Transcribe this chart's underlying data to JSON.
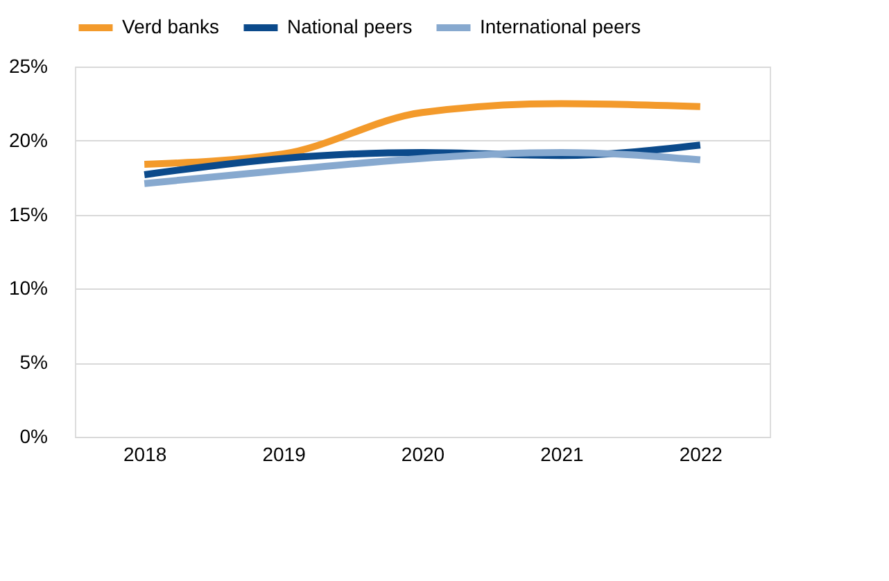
{
  "chart_data": {
    "type": "line",
    "categories": [
      "2018",
      "2019",
      "2020",
      "2021",
      "2022"
    ],
    "series": [
      {
        "name": "Verd banks",
        "color": "#f39a2b",
        "values": [
          18.4,
          19.1,
          21.9,
          22.5,
          22.3
        ]
      },
      {
        "name": "National peers",
        "color": "#0b4a8b",
        "values": [
          17.7,
          18.8,
          19.2,
          19.0,
          19.7
        ]
      },
      {
        "name": "International peers",
        "color": "#87a9cf",
        "values": [
          17.1,
          18.0,
          18.8,
          19.2,
          18.7
        ]
      }
    ],
    "ylim": [
      0,
      25
    ],
    "yticks": [
      {
        "value": 0,
        "label": "0%"
      },
      {
        "value": 5,
        "label": "5%"
      },
      {
        "value": 10,
        "label": "10%"
      },
      {
        "value": 15,
        "label": "15%"
      },
      {
        "value": 20,
        "label": "20%"
      },
      {
        "value": 25,
        "label": "25%"
      }
    ],
    "grid": "y",
    "legend": "top",
    "marker": "none",
    "line_style": "solid"
  }
}
